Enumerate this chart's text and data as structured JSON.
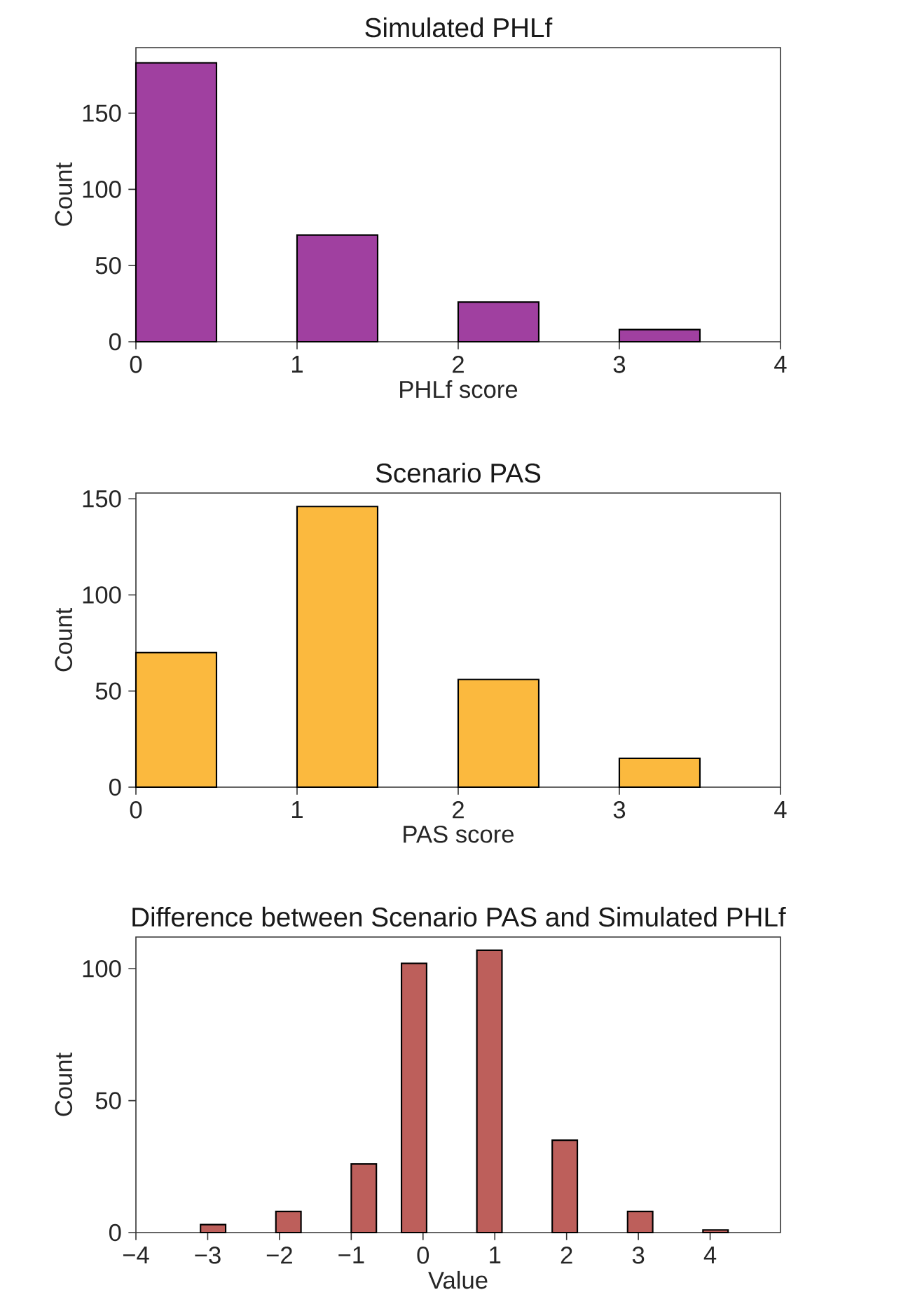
{
  "chart_data": [
    {
      "type": "histogram",
      "title": "Simulated PHLf",
      "xlabel": "PHLf score",
      "ylabel": "Count",
      "color": "#a040a0",
      "bins": [
        0,
        0.5,
        1,
        1.5,
        2,
        2.5,
        3,
        3.5
      ],
      "values": [
        183,
        0,
        70,
        0,
        26,
        0,
        8
      ],
      "xlim": [
        0,
        4
      ],
      "ylim": [
        0,
        193
      ],
      "xticks": [
        0,
        1,
        2,
        3,
        4
      ],
      "yticks": [
        0,
        50,
        100,
        150
      ]
    },
    {
      "type": "histogram",
      "title": "Scenario PAS",
      "xlabel": "PAS score",
      "ylabel": "Count",
      "color": "#fbb93e",
      "bins": [
        0,
        0.5,
        1,
        1.5,
        2,
        2.5,
        3,
        3.5
      ],
      "values": [
        70,
        0,
        146,
        0,
        56,
        0,
        15
      ],
      "xlim": [
        0,
        4
      ],
      "ylim": [
        0,
        153
      ],
      "xticks": [
        0,
        1,
        2,
        3,
        4
      ],
      "yticks": [
        0,
        50,
        100,
        150
      ]
    },
    {
      "type": "histogram",
      "title": "Difference between Scenario PAS and Simulated PHLf",
      "xlabel": "Value",
      "ylabel": "Count",
      "color": "#bd5f5b",
      "bins": [
        -3.1,
        -2.75,
        -2.4,
        -2.05,
        -1.7,
        -1.35,
        -1.0,
        -0.65,
        -0.3,
        0.05,
        0.4,
        0.75,
        1.1,
        1.45,
        1.8,
        2.15,
        2.5,
        2.85,
        3.2,
        3.55,
        3.9,
        4.25
      ],
      "values": [
        3,
        0,
        0,
        8,
        0,
        0,
        26,
        0,
        102,
        0,
        0,
        107,
        0,
        0,
        35,
        0,
        0,
        8,
        0,
        0,
        1
      ],
      "xlim": [
        -4,
        4.98
      ],
      "ylim": [
        0,
        112
      ],
      "xticks": [
        {
          "value": -4,
          "label": "−4"
        },
        {
          "value": -3,
          "label": "−3"
        },
        {
          "value": -2,
          "label": "−2"
        },
        {
          "value": -1,
          "label": "−1"
        },
        0,
        1,
        2,
        3,
        4
      ],
      "yticks": [
        0,
        50,
        100
      ]
    }
  ]
}
